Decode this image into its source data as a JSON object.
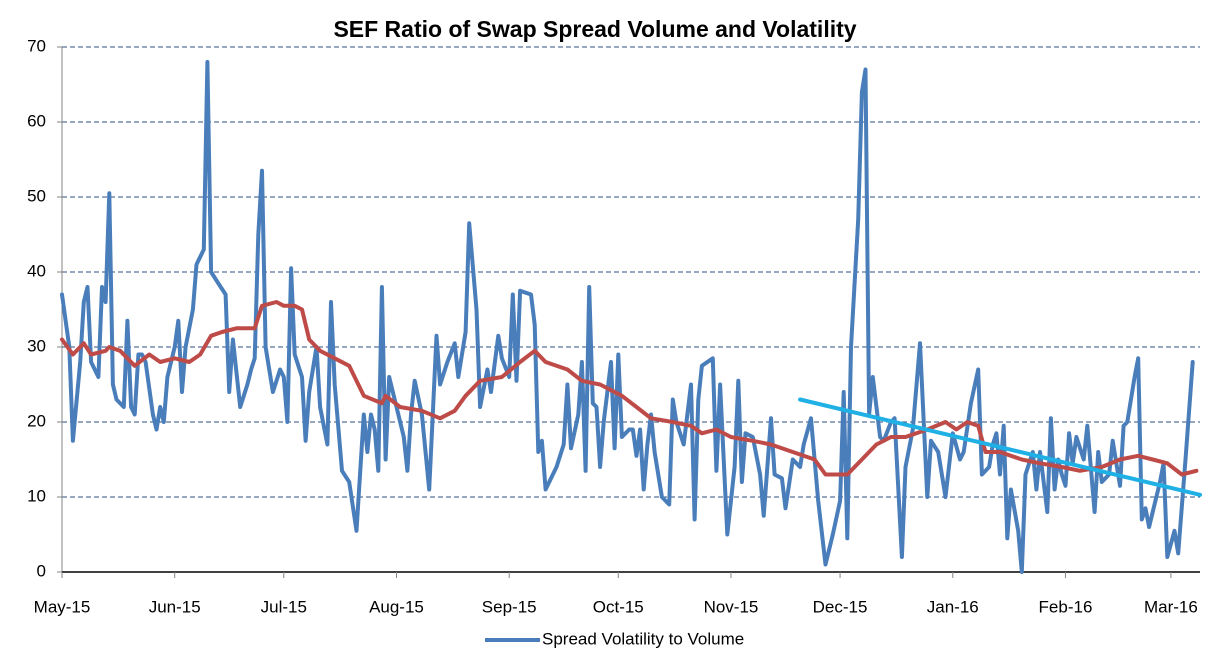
{
  "chart_data": {
    "type": "line",
    "title": "SEF Ratio of Swap Spread Volume and Volatility",
    "xlim": [
      0,
      313
    ],
    "xticks": [
      {
        "value": 0,
        "label": "May-15"
      },
      {
        "value": 31,
        "label": "Jun-15"
      },
      {
        "value": 61,
        "label": "Jul-15"
      },
      {
        "value": 92,
        "label": "Aug-15"
      },
      {
        "value": 123,
        "label": "Sep-15"
      },
      {
        "value": 153,
        "label": "Oct-15"
      },
      {
        "value": 184,
        "label": "Nov-15"
      },
      {
        "value": 214,
        "label": "Dec-15"
      },
      {
        "value": 245,
        "label": "Jan-16"
      },
      {
        "value": 276,
        "label": "Feb-16"
      },
      {
        "value": 305,
        "label": "Mar-16"
      }
    ],
    "ylim": [
      0,
      70
    ],
    "yticks": [
      0,
      10,
      20,
      30,
      40,
      50,
      60,
      70
    ],
    "grid": true,
    "legend": "bottom",
    "series": [
      {
        "name": "Spread Volatility to Volume",
        "color": "#4a7ebb",
        "x": [
          0,
          2,
          3,
          5,
          6,
          7,
          8,
          10,
          11,
          12,
          13,
          14,
          15,
          17,
          18,
          19,
          20,
          21,
          22,
          23,
          25,
          26,
          27,
          28,
          29,
          31,
          32,
          33,
          34,
          36,
          37,
          39,
          40,
          41,
          43,
          45,
          46,
          47,
          49,
          51,
          52,
          53,
          54,
          55,
          56,
          58,
          60,
          61,
          62,
          63,
          64,
          66,
          67,
          68,
          70,
          71,
          73,
          74,
          75,
          77,
          79,
          81,
          83,
          84,
          85,
          86,
          87,
          88,
          89,
          90,
          92,
          94,
          95,
          96,
          97,
          99,
          101,
          103,
          104,
          106,
          108,
          109,
          111,
          112,
          114,
          115,
          117,
          118,
          120,
          121,
          123,
          124,
          125,
          126,
          129,
          130,
          131,
          132,
          133,
          136,
          138,
          139,
          140,
          142,
          143,
          144,
          145,
          146,
          147,
          148,
          149,
          151,
          152,
          153,
          154,
          156,
          157,
          158,
          159,
          160,
          161,
          162,
          163,
          165,
          167,
          168,
          169,
          171,
          173,
          174,
          175,
          176,
          179,
          180,
          181,
          183,
          185,
          186,
          187,
          188,
          190,
          192,
          193,
          195,
          196,
          198,
          199,
          201,
          203,
          204,
          206,
          208,
          210,
          212,
          214,
          215,
          216,
          217,
          219,
          220,
          221,
          222,
          223,
          225,
          226,
          228,
          229,
          231,
          232,
          234,
          236,
          238,
          239,
          241,
          243,
          245,
          247,
          248,
          250,
          252,
          253,
          255,
          256,
          257,
          258,
          259,
          260,
          261,
          263,
          264,
          265,
          267,
          268,
          269,
          271,
          272,
          273,
          274,
          275,
          276,
          277,
          278,
          279,
          281,
          282,
          284,
          285,
          286,
          288,
          289,
          291,
          292,
          293,
          295,
          296,
          297,
          298,
          299,
          300,
          302,
          303,
          304,
          306,
          307,
          309,
          311
        ],
        "values": [
          37,
          30,
          17.5,
          28,
          36,
          38,
          28,
          26,
          38,
          36,
          50.5,
          25,
          23,
          22,
          33.5,
          22,
          21,
          29,
          29,
          28,
          21,
          19,
          22,
          20,
          26,
          30,
          33.5,
          24,
          30,
          35,
          41,
          43,
          68,
          40,
          38.5,
          37,
          24,
          31,
          22,
          25,
          27,
          28.5,
          45,
          53.5,
          30,
          24,
          27,
          26,
          20,
          40.5,
          29,
          26,
          17.5,
          24,
          30,
          22,
          17,
          36,
          25,
          13.5,
          12,
          5.5,
          21,
          16,
          21,
          19,
          13.5,
          38,
          15,
          26,
          22,
          18,
          13.5,
          21,
          25.5,
          21,
          11,
          31.5,
          25,
          28,
          30.5,
          26,
          32,
          46.5,
          35,
          22,
          27,
          24,
          31.5,
          28.5,
          26,
          37,
          25.5,
          37.5,
          37,
          33,
          16,
          17.5,
          11,
          14,
          17,
          25,
          16.5,
          21,
          28,
          13.5,
          38,
          22.5,
          22,
          14,
          20,
          28,
          16.5,
          29,
          18,
          19,
          19,
          15.5,
          19,
          11,
          17,
          21,
          16,
          10,
          9,
          23,
          20,
          17,
          25,
          7,
          23,
          27.5,
          28.5,
          13.5,
          25,
          5,
          14,
          25.5,
          12,
          18.5,
          18,
          13,
          7.5,
          20.5,
          13,
          12.5,
          8.5,
          15,
          14,
          17,
          20.5,
          9.5,
          1,
          5,
          9.5,
          24,
          4.5,
          30,
          47,
          64,
          67,
          21,
          26,
          18,
          17.5,
          20,
          20.5,
          2,
          14,
          19,
          30.5,
          10,
          17.5,
          16,
          10,
          18.5,
          15,
          16,
          22.5,
          27,
          13,
          14,
          17,
          18.5,
          13,
          19.5,
          4.5,
          11,
          5.5,
          0,
          13,
          16,
          11,
          16,
          8,
          20.5,
          11,
          15,
          13,
          11.5,
          18.5,
          14.5,
          18,
          15,
          19.5,
          8,
          16,
          12,
          13,
          17.5,
          11.5,
          19.5,
          20,
          26,
          28.5,
          7,
          8.5,
          6,
          8,
          12,
          14.5,
          2,
          5.5,
          2.5,
          15,
          28
        ]
      },
      {
        "color": "#be4b48",
        "x": [
          0,
          3,
          6,
          8,
          12,
          13,
          16,
          20,
          24,
          27,
          31,
          35,
          38,
          41,
          44,
          48,
          50,
          53,
          55,
          59,
          61,
          64,
          66,
          68,
          71,
          75,
          79,
          83,
          88,
          89,
          93,
          99,
          104,
          108,
          111,
          115,
          121,
          126,
          130,
          133,
          139,
          143,
          148,
          154,
          158,
          162,
          168,
          173,
          176,
          180,
          184,
          190,
          195,
          201,
          207,
          210,
          216,
          220,
          224,
          228,
          232,
          238,
          243,
          246,
          249,
          252,
          254,
          258,
          264,
          269,
          275,
          280,
          286,
          291,
          296,
          300,
          304,
          308,
          312
        ],
        "values": [
          31,
          29,
          30.5,
          29,
          29.5,
          30,
          29.5,
          27.5,
          29,
          28,
          28.5,
          28,
          29,
          31.5,
          32,
          32.5,
          32.5,
          32.5,
          35.5,
          36,
          35.5,
          35.5,
          35,
          31,
          29.5,
          28.5,
          27.5,
          23.5,
          22.5,
          23.5,
          22,
          21.5,
          20.5,
          21.5,
          23.5,
          25.5,
          26,
          28,
          29.5,
          28,
          27,
          25.5,
          25,
          23.5,
          22,
          20.5,
          20,
          19.5,
          18.5,
          19,
          18,
          17.5,
          17,
          16,
          15,
          13,
          13,
          15,
          17,
          18,
          18,
          19,
          20,
          19,
          20,
          19.5,
          16,
          16,
          15,
          14.5,
          14,
          13.5,
          14,
          15,
          15.5,
          15,
          14.5,
          13,
          13.5
        ]
      },
      {
        "color": "#1fb1e6",
        "x": [
          203,
          313
        ],
        "values": [
          23,
          10.3
        ]
      }
    ]
  }
}
